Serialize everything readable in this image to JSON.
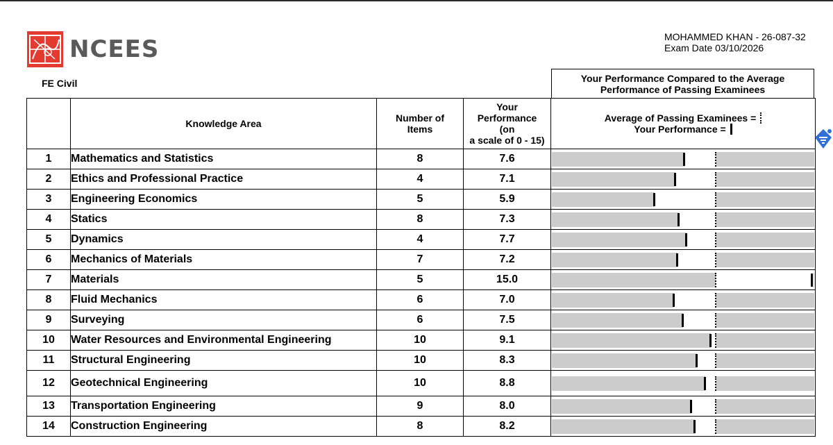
{
  "brand": {
    "name": "NCEES"
  },
  "exam": {
    "name": "FE Civil"
  },
  "candidate": {
    "name_id": "MOHAMMED KHAN - 26-087-32",
    "exam_date": "Exam Date 03/10/2026"
  },
  "performance_header": {
    "line1": "Your Performance Compared to the Average",
    "line2": "Performance of Passing Examinees"
  },
  "table": {
    "headers": {
      "knowledge_area": "Knowledge Area",
      "items_line1": "Number of",
      "items_line2": "Items",
      "score_line1": "Your",
      "score_line2": "Performance",
      "score_line3": "(on",
      "score_line4": "a scale of 0 - 15)",
      "legend_avg": "Average of Passing Examinees =",
      "legend_your": "Your Performance ="
    },
    "passing_average": 9.4,
    "scale_max": 15,
    "rows": [
      {
        "num": "1",
        "area": "Mathematics and Statistics",
        "items": "8",
        "score": "7.6"
      },
      {
        "num": "2",
        "area": "Ethics and Professional Practice",
        "items": "4",
        "score": "7.1"
      },
      {
        "num": "3",
        "area": "Engineering Economics",
        "items": "5",
        "score": "5.9"
      },
      {
        "num": "4",
        "area": "Statics",
        "items": "8",
        "score": "7.3"
      },
      {
        "num": "5",
        "area": "Dynamics",
        "items": "4",
        "score": "7.7"
      },
      {
        "num": "6",
        "area": "Mechanics of Materials",
        "items": "7",
        "score": "7.2"
      },
      {
        "num": "7",
        "area": "Materials",
        "items": "5",
        "score": "15.0"
      },
      {
        "num": "8",
        "area": "Fluid Mechanics",
        "items": "6",
        "score": "7.0"
      },
      {
        "num": "9",
        "area": "Surveying",
        "items": "6",
        "score": "7.5"
      },
      {
        "num": "10",
        "area": "Water Resources and Environmental Engineering",
        "items": "10",
        "score": "9.1"
      },
      {
        "num": "11",
        "area": "Structural Engineering",
        "items": "10",
        "score": "8.3"
      },
      {
        "num": "12",
        "area": "Geotechnical Engineering",
        "items": "10",
        "score": "8.8"
      },
      {
        "num": "13",
        "area": "Transportation Engineering",
        "items": "9",
        "score": "8.0"
      },
      {
        "num": "14",
        "area": "Construction Engineering",
        "items": "8",
        "score": "8.2"
      }
    ]
  },
  "colors": {
    "logo_red": "#e33b2f",
    "bar_gray": "#cccccc",
    "pin_blue": "#2f6fd6"
  },
  "icons": {
    "side_pin": "pin-icon"
  }
}
